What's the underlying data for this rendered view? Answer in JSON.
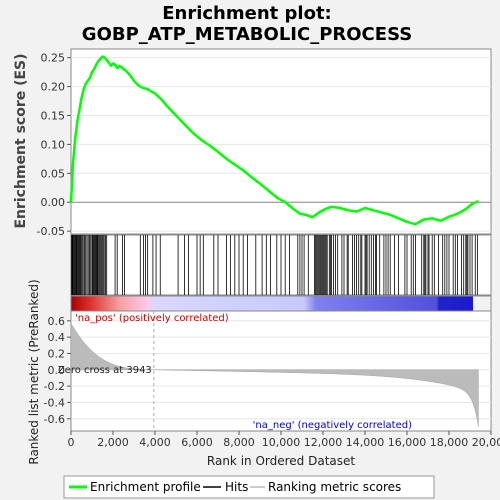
{
  "chart_data": {
    "type": "line",
    "title_line1": "Enrichment plot:",
    "title_line2": "GOBP_ATP_METABOLIC_PROCESS",
    "es_ylabel": "Enrichment score (ES)",
    "metric_ylabel": "Ranked list metric (PreRanked)",
    "xlabel": "Rank in Ordered Dataset",
    "xlim": [
      0,
      20000
    ],
    "x_ticks": [
      "0",
      "2,000",
      "4,000",
      "6,000",
      "8,000",
      "10,000",
      "12,000",
      "14,000",
      "16,000",
      "18,000",
      "20,000"
    ],
    "es_ylim": [
      -0.055,
      0.265
    ],
    "es_y_ticks": [
      "0.25",
      "0.20",
      "0.15",
      "0.10",
      "0.05",
      "0.00",
      "-0.05"
    ],
    "metric_ylim": [
      -0.75,
      0.72
    ],
    "metric_y_ticks": [
      "0.6",
      "0.4",
      "0.2",
      "0.0",
      "-0.2",
      "-0.4",
      "-0.6"
    ],
    "n_genes": 19400,
    "zero_cross_rank": 3943,
    "zero_cross_label": "Zero cross at 3943",
    "pos_label": "'na_pos' (positively correlated)",
    "neg_label": "'na_neg' (negatively correlated)",
    "enrichment_profile": {
      "x": [
        0,
        100,
        200,
        300,
        400,
        500,
        600,
        700,
        800,
        900,
        1000,
        1100,
        1200,
        1300,
        1400,
        1500,
        1600,
        1700,
        1800,
        1900,
        2000,
        2100,
        2200,
        2300,
        2400,
        2500,
        2600,
        2800,
        3000,
        3200,
        3400,
        3600,
        3800,
        4000,
        4300,
        4600,
        5000,
        5400,
        5800,
        6200,
        6600,
        7000,
        7400,
        7800,
        8200,
        8600,
        9000,
        9400,
        9800,
        10200,
        10600,
        10900,
        11200,
        11500,
        11800,
        12100,
        12400,
        12800,
        13200,
        13600,
        14000,
        14400,
        14800,
        15200,
        15600,
        16000,
        16400,
        16800,
        17200,
        17600,
        18000,
        18400,
        18800,
        19100,
        19400
      ],
      "y": [
        0.0,
        0.07,
        0.11,
        0.14,
        0.16,
        0.18,
        0.195,
        0.205,
        0.21,
        0.215,
        0.225,
        0.23,
        0.238,
        0.244,
        0.248,
        0.252,
        0.25,
        0.246,
        0.241,
        0.236,
        0.24,
        0.238,
        0.232,
        0.236,
        0.234,
        0.23,
        0.228,
        0.22,
        0.21,
        0.202,
        0.198,
        0.196,
        0.192,
        0.188,
        0.178,
        0.165,
        0.15,
        0.135,
        0.12,
        0.108,
        0.098,
        0.087,
        0.075,
        0.065,
        0.055,
        0.043,
        0.032,
        0.02,
        0.008,
        0.0,
        -0.012,
        -0.02,
        -0.022,
        -0.026,
        -0.018,
        -0.012,
        -0.008,
        -0.01,
        -0.014,
        -0.016,
        -0.01,
        -0.014,
        -0.018,
        -0.022,
        -0.028,
        -0.034,
        -0.038,
        -0.03,
        -0.028,
        -0.032,
        -0.025,
        -0.02,
        -0.012,
        -0.003,
        0.002
      ]
    },
    "hit_ranks": [
      20,
      60,
      90,
      130,
      170,
      200,
      240,
      280,
      320,
      360,
      400,
      440,
      480,
      530,
      580,
      640,
      700,
      760,
      820,
      880,
      940,
      1000,
      1040,
      1080,
      1120,
      1160,
      1200,
      1240,
      1280,
      1330,
      1380,
      1430,
      1480,
      1530,
      1580,
      1640,
      1700,
      2100,
      2200,
      2450,
      2550,
      3300,
      3450,
      3550,
      3650,
      3900,
      4050,
      4250,
      5100,
      5400,
      5600,
      6000,
      6150,
      6300,
      6800,
      7000,
      7400,
      7600,
      7800,
      8000,
      8200,
      8400,
      8800,
      9100,
      9300,
      9500,
      9800,
      10000,
      10200,
      10400,
      10800,
      10900,
      11000,
      11100,
      11300,
      11600,
      11650,
      11700,
      11750,
      11800,
      11850,
      11900,
      11950,
      12000,
      12050,
      12100,
      12150,
      12200,
      12300,
      12350,
      12400,
      12500,
      12600,
      12700,
      12900,
      13000,
      13150,
      13200,
      13400,
      13500,
      13600,
      13700,
      13800,
      13850,
      14000,
      14050,
      14100,
      14200,
      14300,
      14400,
      14500,
      14550,
      14700,
      14900,
      15000,
      15100,
      15200,
      15400,
      15600,
      15900,
      16000,
      16200,
      16300,
      16400,
      16700,
      16800,
      16850,
      16900,
      17000,
      17050,
      17200,
      17300,
      17500,
      17700,
      17800,
      17900,
      18000,
      18200,
      18300,
      18400,
      18600,
      18700,
      18800,
      18850,
      18900,
      19000,
      19100,
      19250,
      19350
    ]
  },
  "legend": {
    "enrichment": "Enrichment profile",
    "hits": "Hits",
    "ranking": "Ranking metric scores"
  },
  "colors": {
    "enrichment": "#00ff00",
    "hits": "#000000",
    "ranking": "#bbbbbb",
    "zero_line": "#9e9e9e",
    "pos_text": "#cc0000",
    "neg_text": "#0000cc"
  }
}
